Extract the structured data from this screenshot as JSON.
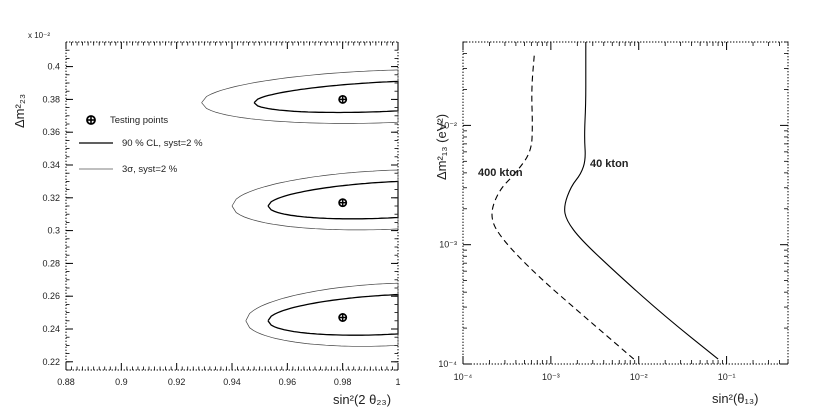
{
  "chart_data": [
    {
      "type": "line",
      "xlabel": "sin²(2 θ₂₃)",
      "ylabel": "Δm²₂₃",
      "y_multiplier": "x 10⁻²",
      "xlim": [
        0.88,
        1.0
      ],
      "ylim": [
        0.215,
        0.415
      ],
      "x_ticks": [
        "0.88",
        "0.9",
        "0.92",
        "0.94",
        "0.96",
        "0.98",
        "1"
      ],
      "y_ticks": [
        "0.22",
        "0.24",
        "0.26",
        "0.28",
        "0.3",
        "0.32",
        "0.34",
        "0.36",
        "0.38",
        "0.4"
      ],
      "legend": [
        {
          "label": "Testing points",
          "style": "marker"
        },
        {
          "label": "90 % CL, syst=2  %",
          "style": "solid"
        },
        {
          "label": "3σ, syst=2  %",
          "style": "thin"
        }
      ],
      "testing_points": [
        {
          "x": 0.98,
          "y": 0.38
        },
        {
          "x": 0.98,
          "y": 0.317
        },
        {
          "x": 0.98,
          "y": 0.247
        }
      ],
      "contours": [
        {
          "level": "90% CL",
          "center_y": 0.38,
          "x_min": 0.948,
          "y_half_width": 0.009
        },
        {
          "level": "3σ",
          "center_y": 0.38,
          "x_min": 0.929,
          "y_half_width": 0.016
        },
        {
          "level": "90% CL",
          "center_y": 0.317,
          "x_min": 0.953,
          "y_half_width": 0.011
        },
        {
          "level": "3σ",
          "center_y": 0.317,
          "x_min": 0.94,
          "y_half_width": 0.018
        },
        {
          "level": "90% CL",
          "center_y": 0.247,
          "x_min": 0.953,
          "y_half_width": 0.012
        },
        {
          "level": "3σ",
          "center_y": 0.247,
          "x_min": 0.945,
          "y_half_width": 0.019
        }
      ]
    },
    {
      "type": "line",
      "xlabel": "sin²(θ₁₃)",
      "ylabel": "Δm²₁₃ (eV²)",
      "x_scale": "log",
      "y_scale": "log",
      "xlim": [
        0.0001,
        0.5
      ],
      "ylim": [
        0.0001,
        0.05
      ],
      "x_ticks": [
        "10⁻⁴",
        "10⁻³",
        "10⁻²",
        "10⁻¹"
      ],
      "y_ticks": [
        "10⁻⁴",
        "10⁻³",
        "10⁻²"
      ],
      "series": [
        {
          "name": "40 kton",
          "style": "solid",
          "points": [
            [
              0.08,
              0.00011
            ],
            [
              0.02,
              0.00025
            ],
            [
              0.006,
              0.00055
            ],
            [
              0.0022,
              0.0011
            ],
            [
              0.0015,
              0.0016
            ],
            [
              0.0014,
              0.0021
            ],
            [
              0.0017,
              0.0031
            ],
            [
              0.0022,
              0.0039
            ],
            [
              0.0025,
              0.0052
            ],
            [
              0.0024,
              0.008
            ],
            [
              0.0025,
              0.015
            ],
            [
              0.0025,
              0.03
            ],
            [
              0.0025,
              0.05
            ]
          ]
        },
        {
          "name": "400 kton",
          "style": "dashed",
          "points": [
            [
              0.0088,
              0.00011
            ],
            [
              0.0024,
              0.00025
            ],
            [
              0.0007,
              0.00055
            ],
            [
              0.00028,
              0.0011
            ],
            [
              0.0002,
              0.0017
            ],
            [
              0.00025,
              0.0028
            ],
            [
              0.0004,
              0.004
            ],
            [
              0.0006,
              0.006
            ],
            [
              0.00062,
              0.01
            ],
            [
              0.0006,
              0.02
            ],
            [
              0.00065,
              0.04
            ]
          ]
        }
      ],
      "annotations": [
        "400 kton",
        "40 kton"
      ]
    }
  ]
}
